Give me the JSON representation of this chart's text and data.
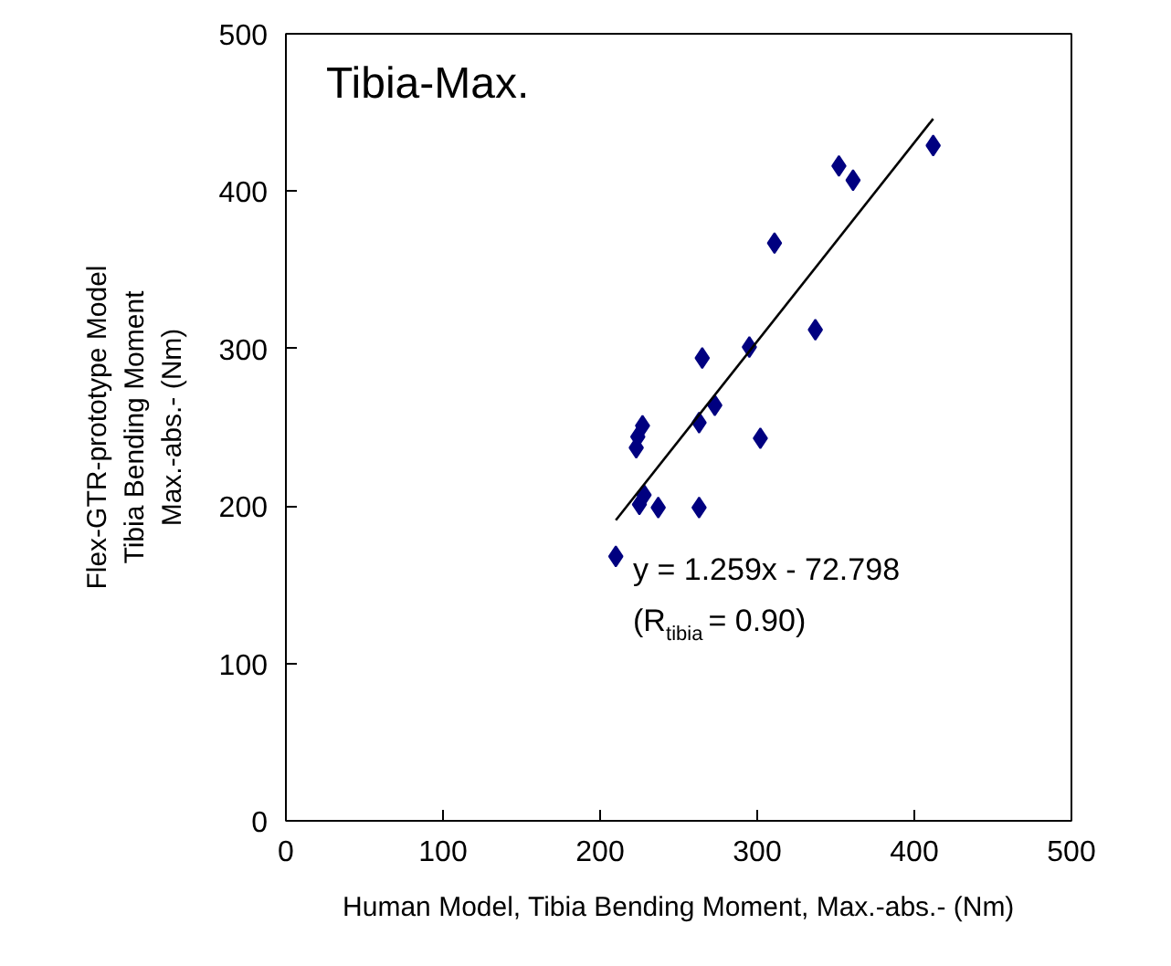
{
  "chart_data": {
    "type": "scatter",
    "title": "Tibia-Max.",
    "xlabel": "Human Model, Tibia Bending Moment, Max.-abs.- (Nm)",
    "ylabel": "Flex-GTR-prototype Model\nTibia Bending Moment\nMax.-abs.- (Nm)",
    "xlim": [
      0,
      500
    ],
    "ylim": [
      0,
      500
    ],
    "xticks": [
      0,
      100,
      200,
      300,
      400,
      500
    ],
    "yticks": [
      0,
      100,
      200,
      300,
      400,
      500
    ],
    "grid": false,
    "marker": "diamond",
    "annotations": [
      "y = 1.259x - 72.798",
      "(R$_{tibia}$ = 0.90)"
    ],
    "series": [
      {
        "color": "#000080",
        "x": [
          412,
          352,
          361,
          311,
          337,
          295,
          265,
          273,
          263,
          302,
          227,
          224,
          223,
          228,
          225,
          237,
          263,
          210
        ],
        "values": [
          429,
          416,
          407,
          367,
          312,
          301,
          294,
          264,
          253,
          243,
          251,
          244,
          237,
          207,
          201,
          199,
          199,
          168
        ]
      },
      {
        "type": "line",
        "color": "#000000",
        "marker": "none",
        "line_style": "solid",
        "x": [
          210,
          412
        ],
        "values": [
          191,
          446
        ]
      }
    ]
  }
}
